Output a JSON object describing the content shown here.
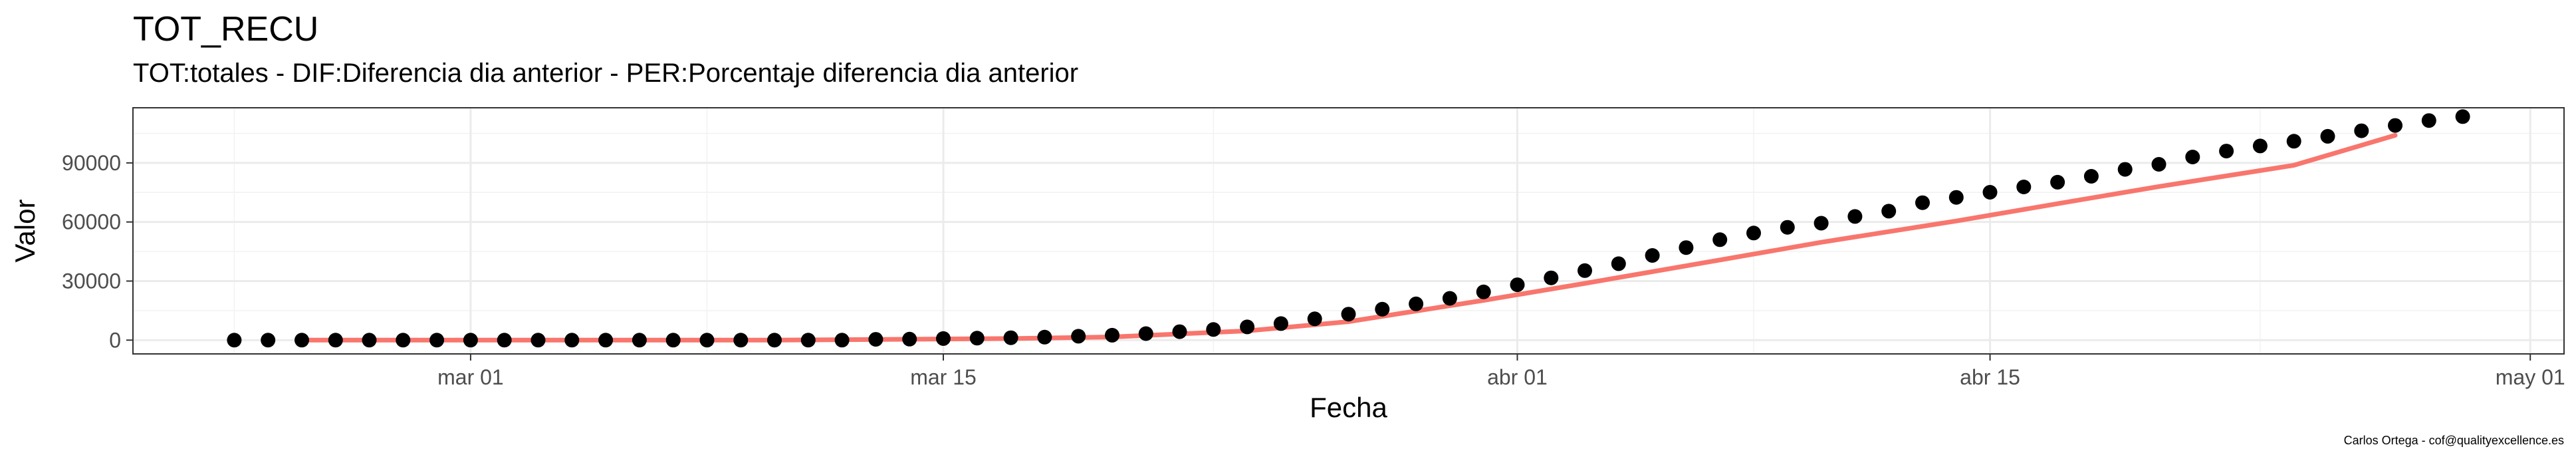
{
  "chart_data": {
    "type": "scatter",
    "title": "TOT_RECU",
    "subtitle": "TOT:totales - DIF:Diferencia dia anterior - PER:Porcentaje diferencia dia anterior",
    "xlabel": "Fecha",
    "ylabel": "Valor",
    "caption": "Carlos Ortega - cof@qualityexcellence.es",
    "x_ticks": [
      "mar 01",
      "mar 15",
      "abr 01",
      "abr 15",
      "may 01"
    ],
    "y_ticks": [
      "0",
      "30000",
      "60000",
      "90000"
    ],
    "xlim": [
      "2020-02-20",
      "2020-05-02"
    ],
    "ylim": [
      -7000,
      118000
    ],
    "grid": true,
    "point_color": "#000000",
    "line_color": "#f8766d",
    "series": [
      {
        "kind": "points",
        "x": [
          "2020-02-23",
          "2020-02-24",
          "2020-02-25",
          "2020-02-26",
          "2020-02-27",
          "2020-02-28",
          "2020-02-29",
          "2020-03-01",
          "2020-03-02",
          "2020-03-03",
          "2020-03-04",
          "2020-03-05",
          "2020-03-06",
          "2020-03-07",
          "2020-03-08",
          "2020-03-09",
          "2020-03-10",
          "2020-03-11",
          "2020-03-12",
          "2020-03-13",
          "2020-03-14",
          "2020-03-15",
          "2020-03-16",
          "2020-03-17",
          "2020-03-18",
          "2020-03-19",
          "2020-03-20",
          "2020-03-21",
          "2020-03-22",
          "2020-03-23",
          "2020-03-24",
          "2020-03-25",
          "2020-03-26",
          "2020-03-27",
          "2020-03-28",
          "2020-03-29",
          "2020-03-30",
          "2020-03-31",
          "2020-04-01",
          "2020-04-02",
          "2020-04-03",
          "2020-04-04",
          "2020-04-05",
          "2020-04-06",
          "2020-04-07",
          "2020-04-08",
          "2020-04-09",
          "2020-04-10",
          "2020-04-11",
          "2020-04-12",
          "2020-04-13",
          "2020-04-14",
          "2020-04-15",
          "2020-04-16",
          "2020-04-17",
          "2020-04-18",
          "2020-04-19",
          "2020-04-20",
          "2020-04-21",
          "2020-04-22",
          "2020-04-23",
          "2020-04-24",
          "2020-04-25",
          "2020-04-26",
          "2020-04-27",
          "2020-04-28",
          "2020-04-29"
        ],
        "y": [
          0,
          0,
          0,
          0,
          0,
          0,
          0,
          0,
          0,
          0,
          0,
          0,
          0,
          0,
          0,
          0,
          0,
          0,
          0,
          400,
          500,
          800,
          1000,
          1200,
          1500,
          2000,
          2500,
          3300,
          4300,
          5400,
          6700,
          8400,
          10800,
          13200,
          15700,
          18400,
          21200,
          24500,
          28100,
          31600,
          35300,
          38800,
          43000,
          47000,
          51000,
          54400,
          57300,
          59400,
          62800,
          65500,
          69800,
          72500,
          75100,
          77800,
          80200,
          83200,
          86700,
          89300,
          93000,
          96000,
          98600,
          101000,
          103500,
          106300,
          109000,
          111500,
          113500
        ]
      },
      {
        "kind": "fitted-line",
        "x": [
          "2020-02-25",
          "2020-03-10",
          "2020-03-17",
          "2020-03-20",
          "2020-03-24",
          "2020-03-27",
          "2020-03-31",
          "2020-04-03",
          "2020-04-07",
          "2020-04-10",
          "2020-04-14",
          "2020-04-17",
          "2020-04-20",
          "2020-04-24",
          "2020-04-27"
        ],
        "y": [
          0,
          0,
          800,
          1600,
          4700,
          9400,
          20200,
          28800,
          40700,
          49700,
          60500,
          69300,
          78000,
          88800,
          104000
        ]
      }
    ]
  }
}
